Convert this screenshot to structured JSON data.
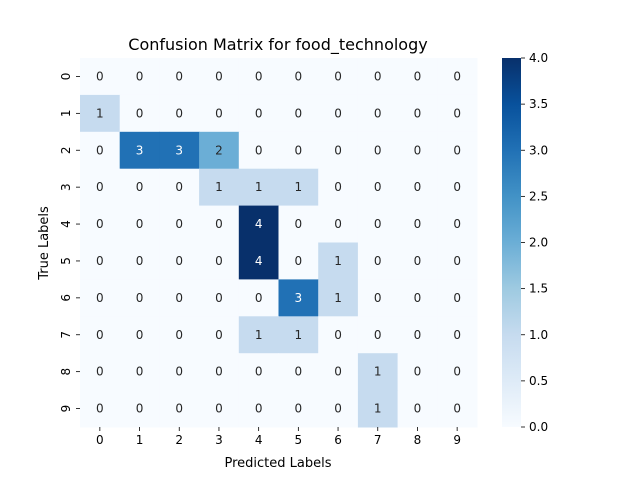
{
  "chart_data": {
    "type": "heatmap",
    "title": "Confusion Matrix for food_technology",
    "xlabel": "Predicted Labels",
    "ylabel": "True Labels",
    "x_categories": [
      "0",
      "1",
      "2",
      "3",
      "4",
      "5",
      "6",
      "7",
      "8",
      "9"
    ],
    "y_categories": [
      "0",
      "1",
      "2",
      "3",
      "4",
      "5",
      "6",
      "7",
      "8",
      "9"
    ],
    "matrix": [
      [
        0,
        0,
        0,
        0,
        0,
        0,
        0,
        0,
        0,
        0
      ],
      [
        1,
        0,
        0,
        0,
        0,
        0,
        0,
        0,
        0,
        0
      ],
      [
        0,
        3,
        3,
        2,
        0,
        0,
        0,
        0,
        0,
        0
      ],
      [
        0,
        0,
        0,
        1,
        1,
        1,
        0,
        0,
        0,
        0
      ],
      [
        0,
        0,
        0,
        0,
        4,
        0,
        0,
        0,
        0,
        0
      ],
      [
        0,
        0,
        0,
        0,
        4,
        0,
        1,
        0,
        0,
        0
      ],
      [
        0,
        0,
        0,
        0,
        0,
        3,
        1,
        0,
        0,
        0
      ],
      [
        0,
        0,
        0,
        0,
        1,
        1,
        0,
        0,
        0,
        0
      ],
      [
        0,
        0,
        0,
        0,
        0,
        0,
        0,
        1,
        0,
        0
      ],
      [
        0,
        0,
        0,
        0,
        0,
        0,
        0,
        1,
        0,
        0
      ]
    ],
    "colorbar": {
      "min": 0.0,
      "max": 4.0,
      "ticks": [
        "0.0",
        "0.5",
        "1.0",
        "1.5",
        "2.0",
        "2.5",
        "3.0",
        "3.5",
        "4.0"
      ],
      "colormap": "Blues"
    },
    "grid": false
  }
}
